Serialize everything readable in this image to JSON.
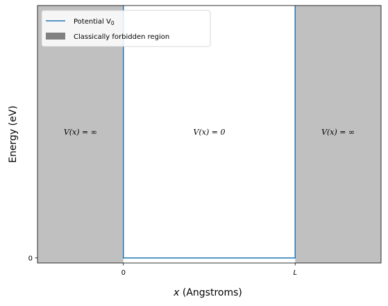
{
  "chart_data": {
    "type": "line",
    "x_ticks": [
      "0",
      "L"
    ],
    "y_ticks": [
      "0"
    ],
    "xlabel_var": "x",
    "xlabel_unit": " (Angstroms)",
    "ylabel": "Energy (eV)",
    "xlim": [
      -0.5,
      1.5
    ],
    "ylim": [
      -0.02,
      1.0
    ],
    "series": [
      {
        "name": "Potential V",
        "name_subscript": "0",
        "color": "#1f77b4",
        "x": [
          0,
          0,
          1,
          1
        ],
        "y": [
          1.0,
          0,
          0,
          1.0
        ]
      }
    ],
    "regions": [
      {
        "name": "Classically forbidden region",
        "x_start": -0.5,
        "x_end": 0,
        "color": "#c0c0c0",
        "legend_color": "#808080"
      },
      {
        "name": "Classically forbidden region",
        "x_start": 1,
        "x_end": 1.5,
        "color": "#c0c0c0",
        "legend_color": "#808080"
      }
    ],
    "annotations": [
      {
        "text": "V(x) = ∞",
        "x": -0.25,
        "y": 0.5
      },
      {
        "text": "V(x) = 0",
        "x": 0.5,
        "y": 0.5
      },
      {
        "text": "V(x) = ∞",
        "x": 1.25,
        "y": 0.5
      }
    ],
    "legend": {
      "position": "top-left",
      "line_label": "Potential V",
      "line_label_sub": "0",
      "patch_label": "Classically forbidden region"
    },
    "grid": false
  }
}
